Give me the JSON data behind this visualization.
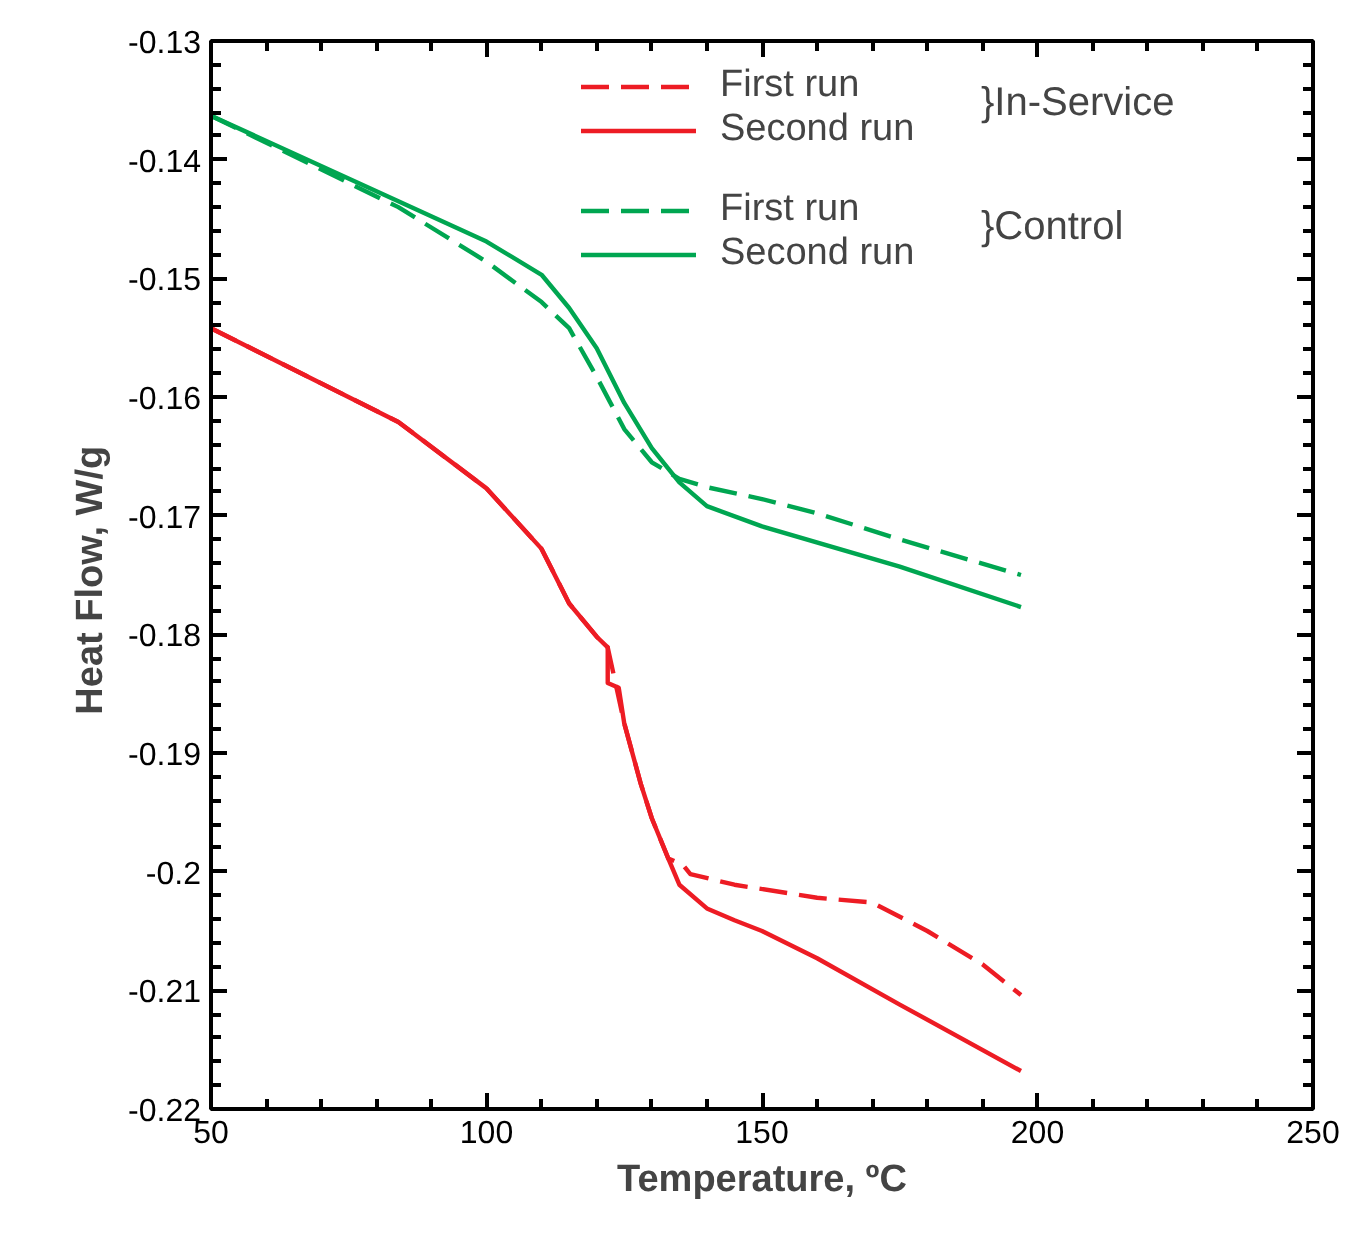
{
  "chart_data": {
    "type": "line",
    "xlabel": "Temperature, ºC",
    "ylabel": "Heat Flow,  W/g",
    "xlim": [
      50,
      250
    ],
    "xticks": [
      50,
      100,
      150,
      200,
      250
    ],
    "ylim": [
      -0.22,
      -0.13
    ],
    "yticks": [
      -0.22,
      -0.21,
      -0.2,
      -0.19,
      -0.18,
      -0.17,
      -0.16,
      -0.15,
      -0.14,
      -0.13
    ],
    "legend": "top right",
    "grid": false,
    "annotations": [
      "}In-Service",
      "}Control"
    ],
    "series": [
      {
        "name": "First run",
        "color": "#ed1c24",
        "line_style": "dashed",
        "x": [
          50,
          84,
          100,
          110,
          115,
          120,
          122,
          125,
          128,
          130,
          133,
          135.6,
          137,
          145,
          160,
          170,
          180,
          190,
          197
        ],
        "values": [
          -0.1542,
          -0.1621,
          -0.1677,
          -0.1728,
          -0.1774,
          -0.1802,
          -0.1811,
          -0.1875,
          -0.1926,
          -0.1955,
          -0.1989,
          -0.1994,
          -0.2002,
          -0.2011,
          -0.2022,
          -0.2026,
          -0.205,
          -0.2078,
          -0.2104
        ]
      },
      {
        "name": "Second run",
        "color": "#ed1c24",
        "line_style": "solid",
        "x": [
          50,
          84,
          100,
          110,
          115,
          120,
          122,
          122,
          124,
          125,
          128,
          130,
          133,
          135,
          140,
          145,
          150,
          160,
          175,
          197
        ],
        "values": [
          -0.1542,
          -0.1621,
          -0.1677,
          -0.1728,
          -0.1774,
          -0.1802,
          -0.1811,
          -0.1841,
          -0.1845,
          -0.1875,
          -0.1926,
          -0.1955,
          -0.1989,
          -0.2011,
          -0.2031,
          -0.2041,
          -0.205,
          -0.2073,
          -0.2112,
          -0.2168
        ]
      },
      {
        "name": "First run",
        "color": "#00a651",
        "line_style": "dashed",
        "x": [
          50,
          84,
          100,
          110,
          115,
          120,
          125,
          130,
          135,
          140,
          150,
          160,
          175,
          197
        ],
        "values": [
          -0.1363,
          -0.144,
          -0.1486,
          -0.152,
          -0.1542,
          -0.1583,
          -0.1627,
          -0.1655,
          -0.1669,
          -0.1676,
          -0.1686,
          -0.1698,
          -0.172,
          -0.175
        ]
      },
      {
        "name": "Second run",
        "color": "#00a651",
        "line_style": "solid",
        "x": [
          50,
          84,
          100,
          110,
          115,
          120,
          125,
          130,
          135,
          140,
          150,
          175,
          197
        ],
        "values": [
          -0.1363,
          -0.1435,
          -0.1469,
          -0.1497,
          -0.1525,
          -0.1559,
          -0.1605,
          -0.1643,
          -0.1672,
          -0.1692,
          -0.1709,
          -0.1743,
          -0.1777
        ]
      }
    ]
  }
}
